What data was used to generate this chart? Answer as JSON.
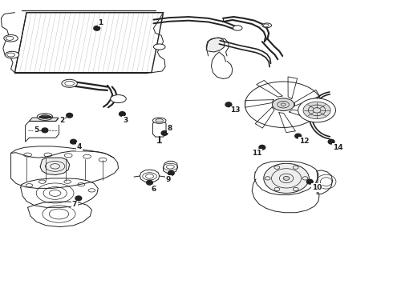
{
  "bg_color": "#ffffff",
  "line_color": "#222222",
  "callouts": [
    {
      "num": "1",
      "dot": [
        0.245,
        0.905
      ],
      "label": [
        0.255,
        0.925
      ]
    },
    {
      "num": "2",
      "dot": [
        0.175,
        0.6
      ],
      "label": [
        0.155,
        0.582
      ]
    },
    {
      "num": "3",
      "dot": [
        0.31,
        0.605
      ],
      "label": [
        0.318,
        0.582
      ]
    },
    {
      "num": "4",
      "dot": [
        0.185,
        0.508
      ],
      "label": [
        0.2,
        0.49
      ]
    },
    {
      "num": "5",
      "dot": [
        0.112,
        0.548
      ],
      "label": [
        0.09,
        0.548
      ]
    },
    {
      "num": "6",
      "dot": [
        0.38,
        0.365
      ],
      "label": [
        0.39,
        0.342
      ]
    },
    {
      "num": "7",
      "dot": [
        0.198,
        0.31
      ],
      "label": [
        0.188,
        0.288
      ]
    },
    {
      "num": "8",
      "dot": [
        0.418,
        0.538
      ],
      "label": [
        0.432,
        0.555
      ]
    },
    {
      "num": "9",
      "dot": [
        0.435,
        0.398
      ],
      "label": [
        0.428,
        0.375
      ]
    },
    {
      "num": "10",
      "dot": [
        0.79,
        0.368
      ],
      "label": [
        0.808,
        0.348
      ]
    },
    {
      "num": "11",
      "dot": [
        0.668,
        0.488
      ],
      "label": [
        0.655,
        0.468
      ]
    },
    {
      "num": "12",
      "dot": [
        0.76,
        0.528
      ],
      "label": [
        0.775,
        0.51
      ]
    },
    {
      "num": "13",
      "dot": [
        0.582,
        0.638
      ],
      "label": [
        0.6,
        0.618
      ]
    },
    {
      "num": "14",
      "dot": [
        0.845,
        0.508
      ],
      "label": [
        0.862,
        0.488
      ]
    }
  ]
}
